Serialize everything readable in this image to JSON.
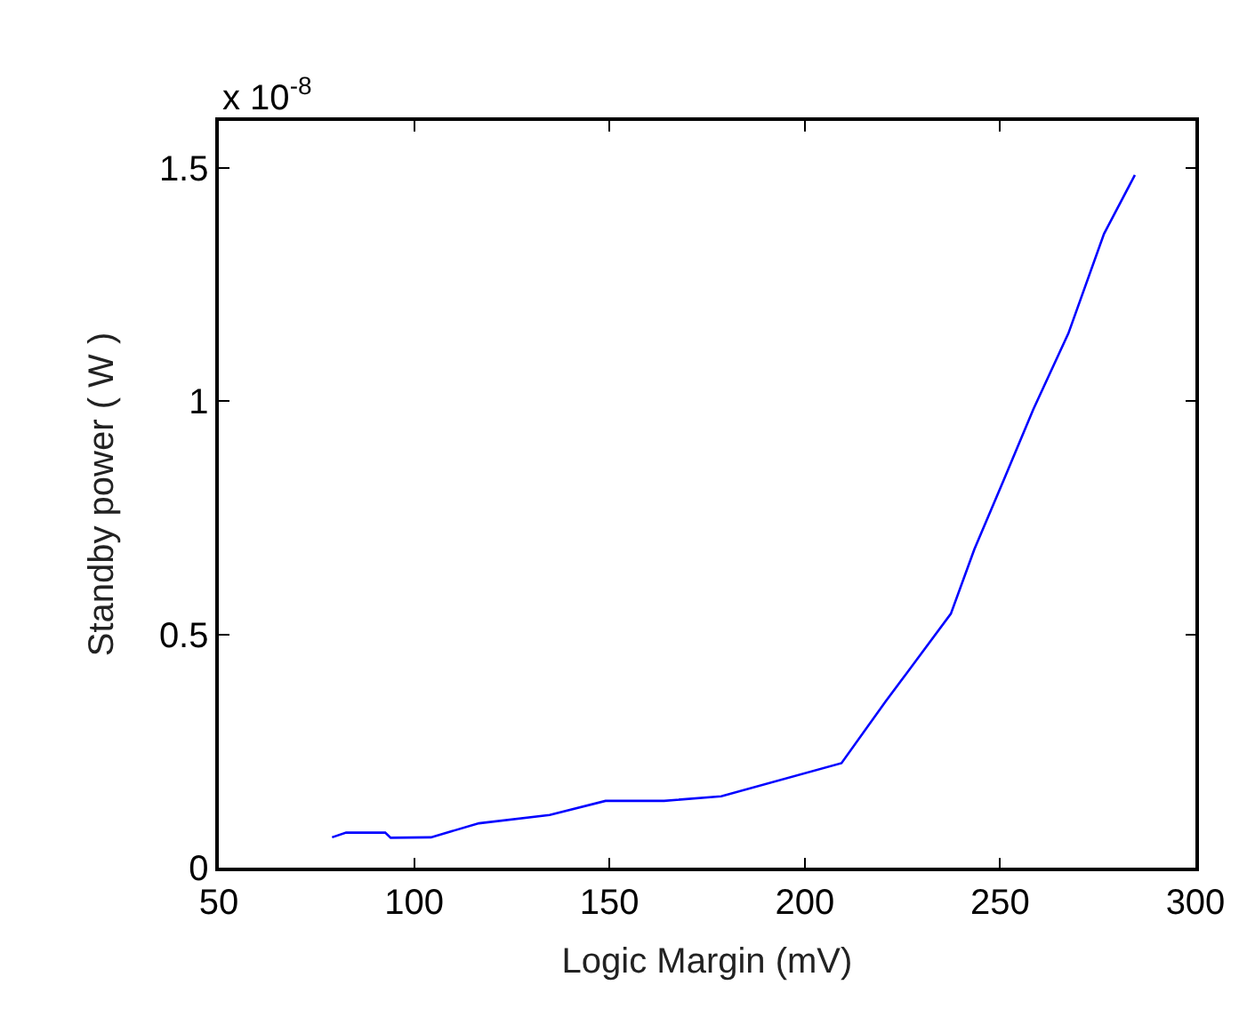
{
  "chart_data": {
    "type": "line",
    "xlabel": "Logic Margin (mV)",
    "ylabel": "Standby power ( W )",
    "annotations": [
      "x 10$^{-8}$"
    ],
    "x": [
      79,
      82.6,
      92.6,
      94,
      104.3,
      116.6,
      134.7,
      149,
      164,
      178.6,
      209.4,
      220.7,
      237.4,
      243.4,
      251,
      258.5,
      267.5,
      276.6,
      284.5
    ],
    "series": [
      {
        "color": "#0000ff",
        "values": [
          0.065,
          0.075,
          0.075,
          0.064,
          0.065,
          0.095,
          0.113,
          0.143,
          0.143,
          0.153,
          0.224,
          0.356,
          0.544,
          0.682,
          0.832,
          0.982,
          1.145,
          1.358,
          1.484
        ]
      }
    ],
    "xlim": [
      50,
      300
    ],
    "xticks": [
      50,
      100,
      150,
      200,
      250,
      300
    ],
    "ylim": [
      0,
      1.6
    ],
    "yticks": [
      0,
      0.5,
      1,
      1.5
    ],
    "marker": "none",
    "line_style": "solid"
  }
}
